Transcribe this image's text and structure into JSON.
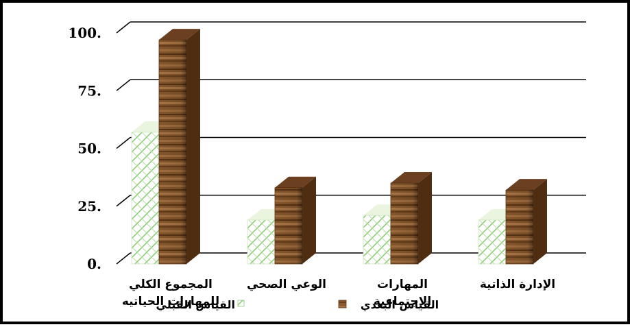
{
  "chart_data": {
    "type": "bar",
    "style": "3d",
    "categories": [
      "المجموع الكلي للمهارات الحياتيه",
      "الوعي الصحي",
      "المهارات الاجتماعية",
      "الإدارة الذاتية"
    ],
    "series": [
      {
        "name": "القياس القبلي",
        "values": [
          57,
          19,
          21,
          19
        ],
        "color": "#9fd08a"
      },
      {
        "name": "القياس البعدي",
        "values": [
          97,
          33,
          35,
          32
        ],
        "color": "#8b5a2b"
      }
    ],
    "y_ticks": [
      "0.",
      "25.",
      "50.",
      "75.",
      "100."
    ],
    "ylim": [
      0,
      100
    ],
    "grid": true,
    "legend": "bottom"
  },
  "axis_labels": {
    "category_lines": [
      [
        "المجموع الكلي",
        "للمهارات الحياتيه"
      ],
      [
        "الوعي الصحي"
      ],
      [
        "المهارات",
        "الاجتماعية"
      ],
      [
        "الإدارة الذاتية"
      ]
    ]
  },
  "legend": {
    "items": [
      {
        "label": "القياس القبلي",
        "swatch": "pattern-icon"
      },
      {
        "label": "القياس البعدي",
        "swatch": "wood-icon"
      }
    ]
  }
}
